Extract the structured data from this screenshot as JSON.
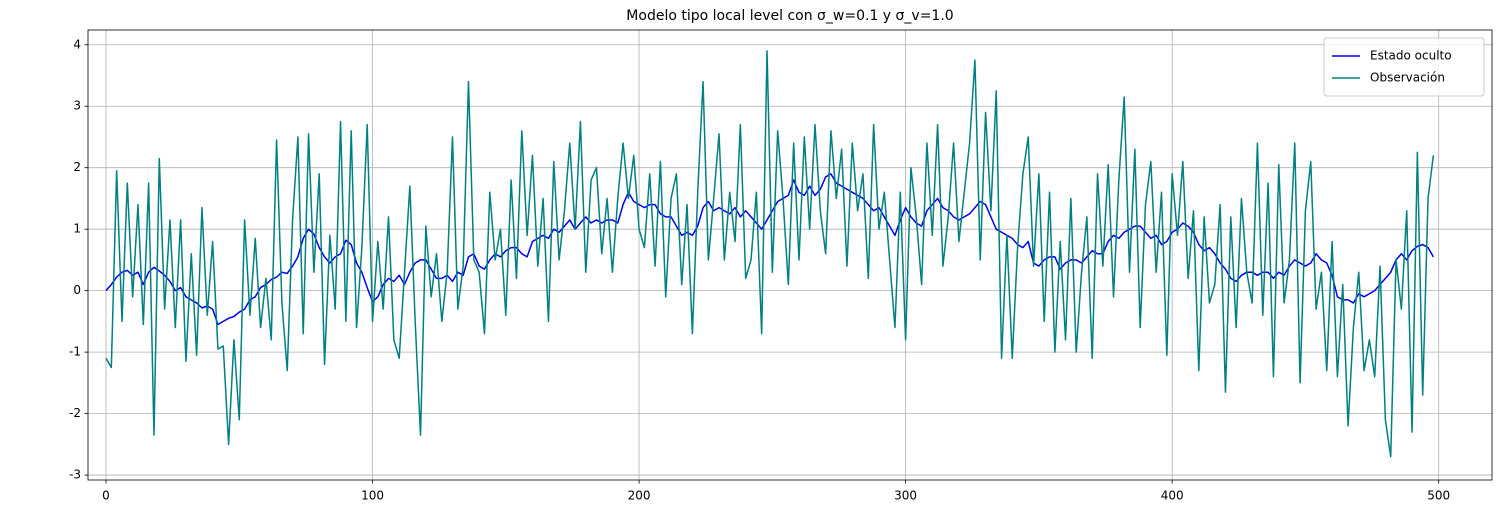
{
  "chart_data": {
    "type": "line",
    "title": "Modelo tipo local level con σ_w=0.1 y σ_v=1.0",
    "x": [
      0,
      2,
      4,
      6,
      8,
      10,
      12,
      14,
      16,
      18,
      20,
      22,
      24,
      26,
      28,
      30,
      32,
      34,
      36,
      38,
      40,
      42,
      44,
      46,
      48,
      50,
      52,
      54,
      56,
      58,
      60,
      62,
      64,
      66,
      68,
      70,
      72,
      74,
      76,
      78,
      80,
      82,
      84,
      86,
      88,
      90,
      92,
      94,
      96,
      98,
      100,
      102,
      104,
      106,
      108,
      110,
      112,
      114,
      116,
      118,
      120,
      122,
      124,
      126,
      128,
      130,
      132,
      134,
      136,
      138,
      140,
      142,
      144,
      146,
      148,
      150,
      152,
      154,
      156,
      158,
      160,
      162,
      164,
      166,
      168,
      170,
      172,
      174,
      176,
      178,
      180,
      182,
      184,
      186,
      188,
      190,
      192,
      194,
      196,
      198,
      200,
      202,
      204,
      206,
      208,
      210,
      212,
      214,
      216,
      218,
      220,
      222,
      224,
      226,
      228,
      230,
      232,
      234,
      236,
      238,
      240,
      242,
      244,
      246,
      248,
      250,
      252,
      254,
      256,
      258,
      260,
      262,
      264,
      266,
      268,
      270,
      272,
      274,
      276,
      278,
      280,
      282,
      284,
      286,
      288,
      290,
      292,
      294,
      296,
      298,
      300,
      302,
      304,
      306,
      308,
      310,
      312,
      314,
      316,
      318,
      320,
      322,
      324,
      326,
      328,
      330,
      332,
      334,
      336,
      338,
      340,
      342,
      344,
      346,
      348,
      350,
      352,
      354,
      356,
      358,
      360,
      362,
      364,
      366,
      368,
      370,
      372,
      374,
      376,
      378,
      380,
      382,
      384,
      386,
      388,
      390,
      392,
      394,
      396,
      398,
      400,
      402,
      404,
      406,
      408,
      410,
      412,
      414,
      416,
      418,
      420,
      422,
      424,
      426,
      428,
      430,
      432,
      434,
      436,
      438,
      440,
      442,
      444,
      446,
      448,
      450,
      452,
      454,
      456,
      458,
      460,
      462,
      464,
      466,
      468,
      470,
      472,
      474,
      476,
      478,
      480,
      482,
      484,
      486,
      488,
      490,
      492,
      494,
      496,
      498
    ],
    "series": [
      {
        "name": "Estado oculto",
        "color": "#0000ee",
        "values": [
          0,
          0.1,
          0.22,
          0.3,
          0.33,
          0.25,
          0.3,
          0.1,
          0.3,
          0.38,
          0.32,
          0.25,
          0.15,
          0.0,
          0.05,
          -0.1,
          -0.15,
          -0.2,
          -0.28,
          -0.25,
          -0.3,
          -0.55,
          -0.5,
          -0.45,
          -0.42,
          -0.35,
          -0.3,
          -0.15,
          -0.1,
          0.05,
          0.1,
          0.18,
          0.22,
          0.3,
          0.28,
          0.4,
          0.55,
          0.85,
          1.0,
          0.92,
          0.7,
          0.55,
          0.45,
          0.55,
          0.6,
          0.82,
          0.75,
          0.45,
          0.3,
          0.05,
          -0.18,
          -0.1,
          0.1,
          0.2,
          0.15,
          0.25,
          0.1,
          0.3,
          0.45,
          0.5,
          0.5,
          0.35,
          0.2,
          0.2,
          0.25,
          0.15,
          0.3,
          0.25,
          0.55,
          0.6,
          0.4,
          0.35,
          0.5,
          0.6,
          0.55,
          0.65,
          0.7,
          0.7,
          0.6,
          0.55,
          0.8,
          0.85,
          0.9,
          0.85,
          1.0,
          0.95,
          1.05,
          1.15,
          1.0,
          1.1,
          1.2,
          1.1,
          1.15,
          1.1,
          1.15,
          1.15,
          1.1,
          1.4,
          1.6,
          1.45,
          1.4,
          1.35,
          1.4,
          1.4,
          1.25,
          1.2,
          1.2,
          1.05,
          0.9,
          0.95,
          0.9,
          1.05,
          1.35,
          1.45,
          1.3,
          1.35,
          1.3,
          1.25,
          1.35,
          1.2,
          1.3,
          1.2,
          1.1,
          1.0,
          1.15,
          1.3,
          1.45,
          1.5,
          1.55,
          1.8,
          1.6,
          1.55,
          1.7,
          1.55,
          1.65,
          1.85,
          1.9,
          1.75,
          1.7,
          1.65,
          1.6,
          1.55,
          1.5,
          1.4,
          1.3,
          1.35,
          1.2,
          1.05,
          0.9,
          1.15,
          1.35,
          1.2,
          1.1,
          1.05,
          1.3,
          1.4,
          1.5,
          1.35,
          1.3,
          1.2,
          1.15,
          1.2,
          1.25,
          1.35,
          1.45,
          1.4,
          1.2,
          1.0,
          0.95,
          0.9,
          0.85,
          0.75,
          0.7,
          0.8,
          0.45,
          0.4,
          0.5,
          0.55,
          0.55,
          0.35,
          0.45,
          0.5,
          0.5,
          0.45,
          0.55,
          0.65,
          0.6,
          0.6,
          0.8,
          0.9,
          0.85,
          0.95,
          1.0,
          1.05,
          1.05,
          0.95,
          0.85,
          0.9,
          0.75,
          0.8,
          0.95,
          1.0,
          1.1,
          1.05,
          0.95,
          0.75,
          0.65,
          0.7,
          0.6,
          0.45,
          0.35,
          0.2,
          0.15,
          0.25,
          0.3,
          0.3,
          0.25,
          0.3,
          0.3,
          0.2,
          0.3,
          0.25,
          0.4,
          0.5,
          0.45,
          0.4,
          0.45,
          0.6,
          0.5,
          0.45,
          0.25,
          -0.1,
          -0.15,
          -0.15,
          -0.2,
          -0.05,
          -0.1,
          -0.05,
          0.0,
          0.1,
          0.2,
          0.3,
          0.5,
          0.6,
          0.5,
          0.65,
          0.72,
          0.75,
          0.7,
          0.55
        ]
      },
      {
        "name": "Observación",
        "color": "#008080",
        "values": [
          -1.1,
          -1.25,
          1.95,
          -0.5,
          1.75,
          -0.1,
          1.4,
          -0.55,
          1.75,
          -2.35,
          2.15,
          -0.3,
          1.15,
          -0.6,
          1.15,
          -1.15,
          0.6,
          -1.05,
          1.35,
          -0.4,
          0.8,
          -0.95,
          -0.9,
          -2.5,
          -0.8,
          -2.1,
          1.15,
          -0.4,
          0.85,
          -0.6,
          0.2,
          -0.8,
          2.45,
          -0.2,
          -1.3,
          1.15,
          2.5,
          -0.7,
          2.55,
          0.3,
          1.9,
          -1.2,
          0.9,
          -0.3,
          2.75,
          -0.5,
          2.6,
          -0.6,
          0.7,
          2.7,
          -0.5,
          0.8,
          -0.3,
          1.2,
          -0.8,
          -1.1,
          0.3,
          1.7,
          -0.5,
          -2.35,
          1.05,
          -0.1,
          0.6,
          -0.5,
          0.3,
          2.5,
          -0.3,
          0.4,
          3.4,
          0.5,
          0.3,
          -0.7,
          1.6,
          0.5,
          1.0,
          -0.4,
          1.8,
          0.2,
          2.6,
          0.9,
          2.2,
          0.4,
          1.5,
          -0.5,
          2.1,
          0.5,
          1.3,
          2.4,
          1.0,
          2.75,
          0.3,
          1.8,
          2.0,
          0.6,
          1.5,
          0.3,
          1.5,
          2.4,
          1.5,
          2.2,
          1.0,
          0.7,
          1.9,
          0.4,
          2.1,
          -0.1,
          1.5,
          1.9,
          0.1,
          1.4,
          -0.7,
          1.6,
          3.4,
          0.5,
          1.5,
          2.55,
          0.5,
          1.6,
          0.8,
          2.7,
          0.2,
          0.5,
          1.6,
          -0.7,
          3.9,
          0.3,
          2.6,
          1.5,
          0.1,
          2.4,
          0.5,
          2.5,
          1.0,
          2.7,
          1.3,
          0.6,
          2.6,
          1.5,
          2.3,
          0.4,
          2.4,
          1.3,
          1.9,
          0.2,
          2.7,
          1.0,
          1.6,
          0.5,
          -0.6,
          1.6,
          -0.8,
          2.0,
          1.2,
          0.1,
          2.4,
          0.9,
          2.7,
          0.4,
          1.2,
          2.4,
          0.8,
          1.6,
          2.4,
          3.75,
          0.5,
          2.9,
          1.3,
          3.25,
          -1.1,
          0.9,
          -1.1,
          0.7,
          1.9,
          2.5,
          0.4,
          1.9,
          -0.5,
          1.6,
          -1.0,
          0.8,
          -0.8,
          1.5,
          -1.0,
          0.3,
          1.2,
          -1.1,
          1.9,
          0.4,
          2.05,
          -0.1,
          1.8,
          3.15,
          0.3,
          2.3,
          -0.6,
          1.4,
          2.1,
          0.3,
          1.6,
          -1.05,
          1.9,
          0.9,
          2.1,
          0.2,
          1.3,
          -1.3,
          1.2,
          -0.2,
          0.1,
          1.4,
          -1.65,
          1.2,
          -0.6,
          1.5,
          0.3,
          -0.2,
          2.4,
          -0.4,
          1.75,
          -1.4,
          2.05,
          -0.2,
          0.5,
          2.4,
          -1.5,
          1.3,
          2.1,
          -0.3,
          0.3,
          -1.3,
          0.8,
          -1.4,
          0.1,
          -2.2,
          -0.6,
          0.3,
          -1.3,
          -0.8,
          -1.4,
          0.4,
          -2.1,
          -2.7,
          0.5,
          -0.3,
          1.3,
          -2.3,
          2.25,
          -1.7,
          1.5,
          2.2
        ]
      }
    ],
    "xlim": [
      -6.75,
      520
    ],
    "ylim": [
      -3.08,
      4.24
    ],
    "xticks": [
      0,
      100,
      200,
      300,
      400,
      500
    ],
    "yticks": [
      -3,
      -2,
      -1,
      0,
      1,
      2,
      3,
      4
    ],
    "grid": true,
    "legend": "upper right"
  }
}
